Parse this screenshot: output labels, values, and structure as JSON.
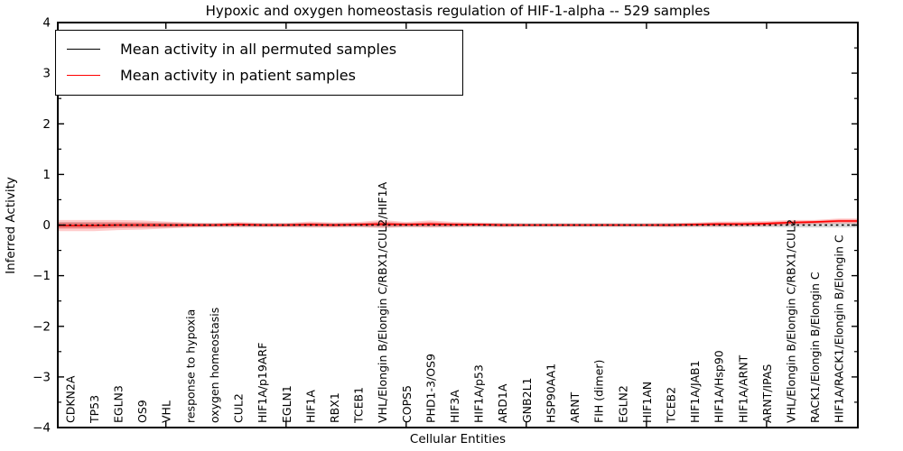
{
  "title": "Hypoxic and oxygen homeostasis regulation of HIF-1-alpha -- 529 samples",
  "sample_count": "529",
  "legend": {
    "position": "upper left",
    "entries": [
      {
        "label": "Mean activity in all permuted samples",
        "color": "#000000"
      },
      {
        "label": "Mean activity in patient samples",
        "color": "#ff0000"
      }
    ]
  },
  "chart_data": {
    "type": "line",
    "title": "Hypoxic and oxygen homeostasis regulation of HIF-1-alpha -- 529 samples",
    "xlabel": "Cellular Entities",
    "ylabel": "Inferred Activity",
    "ylim": [
      -4,
      4
    ],
    "y_ticks": [
      -4,
      -3,
      -2,
      -1,
      0,
      1,
      2,
      3,
      4
    ],
    "x_tick_indices": [
      4,
      9,
      14,
      19,
      24,
      29
    ],
    "grid": false,
    "legend_position": "upper left",
    "categories": [
      "CDKN2A",
      "TP53",
      "EGLN3",
      "OS9",
      "VHL",
      "response to hypoxia",
      "oxygen homeostasis",
      "CUL2",
      "HIF1A/p19ARF",
      "EGLN1",
      "HIF1A",
      "RBX1",
      "TCEB1",
      "VHL/Elongin B/Elongin C/RBX1/CUL2/HIF1A",
      "COPS5",
      "PHD1-3/OS9",
      "HIF3A",
      "HIF1A/p53",
      "ARD1A",
      "GNB2L1",
      "HSP90AA1",
      "ARNT",
      "FIH (dimer)",
      "EGLN2",
      "HIF1AN",
      "TCEB2",
      "HIF1A/JAB1",
      "HIF1A/Hsp90",
      "HIF1A/ARNT",
      "ARNT/IPAS",
      "VHL/Elongin B/Elongin C/RBX1/CUL2",
      "RACK1/Elongin B/Elongin C",
      "HIF1A/RACK1/Elongin B/Elongin C"
    ],
    "series": [
      {
        "name": "Mean activity in all permuted samples",
        "color": "#000000",
        "line_style": "dotted",
        "band_color": "#aaaaaa",
        "values": [
          0,
          0,
          0,
          0,
          0,
          0,
          0,
          0,
          0,
          0,
          0,
          0,
          0,
          0,
          0,
          0,
          0,
          0,
          0,
          0,
          0,
          0,
          0,
          0,
          0,
          0,
          0,
          0,
          0,
          0,
          0,
          0,
          0
        ],
        "band_halfwidth": [
          0.06,
          0.06,
          0.05,
          0.05,
          0.05,
          0.04,
          0.04,
          0.04,
          0.04,
          0.04,
          0.04,
          0.04,
          0.04,
          0.05,
          0.04,
          0.04,
          0.04,
          0.04,
          0.04,
          0.04,
          0.04,
          0.04,
          0.04,
          0.04,
          0.04,
          0.04,
          0.04,
          0.04,
          0.04,
          0.04,
          0.05,
          0.05,
          0.05
        ]
      },
      {
        "name": "Mean activity in patient samples",
        "color": "#ff0000",
        "line_style": "solid",
        "band_color": "#ff0000",
        "values": [
          -0.01,
          -0.01,
          0,
          0,
          0,
          0,
          0,
          0.01,
          0,
          0,
          0.01,
          0,
          0.01,
          0.02,
          0.01,
          0.02,
          0.01,
          0.01,
          0,
          0,
          0,
          0,
          0,
          0,
          0,
          0,
          0.01,
          0.02,
          0.02,
          0.03,
          0.05,
          0.06,
          0.08
        ],
        "band_halfwidth": [
          0.11,
          0.11,
          0.1,
          0.09,
          0.07,
          0.05,
          0.04,
          0.05,
          0.04,
          0.04,
          0.06,
          0.05,
          0.05,
          0.08,
          0.05,
          0.07,
          0.05,
          0.04,
          0.04,
          0.03,
          0.03,
          0.03,
          0.03,
          0.03,
          0.03,
          0.04,
          0.04,
          0.05,
          0.05,
          0.05,
          0.05,
          0.04,
          0.05
        ]
      }
    ]
  },
  "colors": {
    "spine": "#000000",
    "background": "#ffffff",
    "patient_line": "#ff0000",
    "permuted_line": "#000000",
    "permuted_band": "#aaaaaa"
  }
}
